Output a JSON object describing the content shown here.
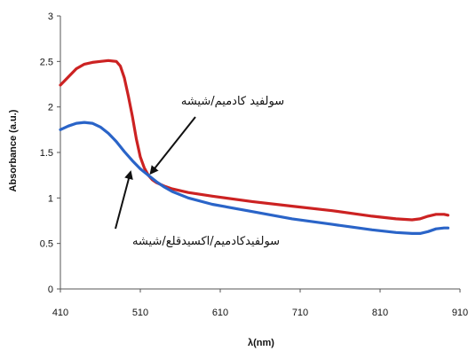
{
  "chart_data": {
    "type": "line",
    "title": "",
    "xlabel": "λ(nm)",
    "ylabel": "Absorbance (a.u.)",
    "xlim": [
      410,
      910
    ],
    "ylim": [
      0,
      3
    ],
    "x_ticks": [
      "410",
      "510",
      "610",
      "710",
      "810",
      "910"
    ],
    "y_ticks": [
      "0",
      "0.5",
      "1",
      "1.5",
      "2",
      "2.5",
      "3"
    ],
    "grid": false,
    "series": [
      {
        "name": "سولفید کادمیم/شیشه",
        "color": "#cc2222",
        "points": [
          [
            410,
            2.24
          ],
          [
            420,
            2.33
          ],
          [
            430,
            2.42
          ],
          [
            440,
            2.47
          ],
          [
            450,
            2.49
          ],
          [
            460,
            2.5
          ],
          [
            470,
            2.51
          ],
          [
            480,
            2.5
          ],
          [
            485,
            2.45
          ],
          [
            490,
            2.32
          ],
          [
            495,
            2.12
          ],
          [
            500,
            1.9
          ],
          [
            505,
            1.65
          ],
          [
            510,
            1.45
          ],
          [
            515,
            1.33
          ],
          [
            520,
            1.25
          ],
          [
            525,
            1.2
          ],
          [
            530,
            1.17
          ],
          [
            540,
            1.13
          ],
          [
            550,
            1.1
          ],
          [
            570,
            1.06
          ],
          [
            600,
            1.02
          ],
          [
            650,
            0.96
          ],
          [
            700,
            0.91
          ],
          [
            750,
            0.86
          ],
          [
            800,
            0.8
          ],
          [
            830,
            0.77
          ],
          [
            850,
            0.76
          ],
          [
            860,
            0.77
          ],
          [
            870,
            0.8
          ],
          [
            880,
            0.82
          ],
          [
            890,
            0.82
          ],
          [
            895,
            0.81
          ]
        ]
      },
      {
        "name": "سولفیدکادمیم/اکسیدقلع/شیشه",
        "color": "#2a64c8",
        "points": [
          [
            410,
            1.75
          ],
          [
            420,
            1.79
          ],
          [
            430,
            1.82
          ],
          [
            440,
            1.83
          ],
          [
            450,
            1.82
          ],
          [
            460,
            1.78
          ],
          [
            470,
            1.71
          ],
          [
            480,
            1.62
          ],
          [
            490,
            1.51
          ],
          [
            500,
            1.41
          ],
          [
            510,
            1.32
          ],
          [
            520,
            1.25
          ],
          [
            530,
            1.18
          ],
          [
            540,
            1.12
          ],
          [
            550,
            1.07
          ],
          [
            570,
            1.0
          ],
          [
            600,
            0.93
          ],
          [
            650,
            0.85
          ],
          [
            700,
            0.77
          ],
          [
            750,
            0.71
          ],
          [
            800,
            0.65
          ],
          [
            830,
            0.62
          ],
          [
            850,
            0.61
          ],
          [
            860,
            0.61
          ],
          [
            870,
            0.63
          ],
          [
            880,
            0.66
          ],
          [
            890,
            0.67
          ],
          [
            895,
            0.67
          ]
        ]
      }
    ],
    "annotations": [
      {
        "text": "سولفید کادمیم/شیشه",
        "target_series": 0
      },
      {
        "text": "سولفیدکادمیم/اکسیدقلع/شیشه",
        "target_series": 1
      }
    ]
  }
}
